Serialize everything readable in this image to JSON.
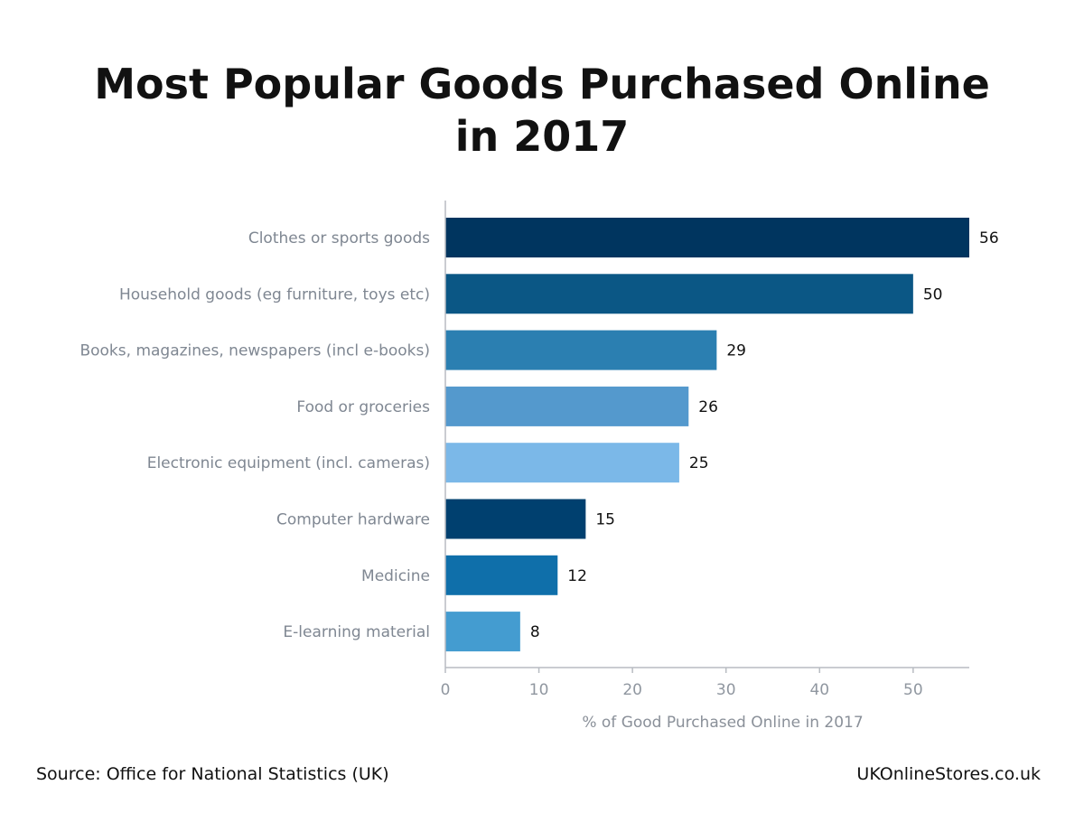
{
  "chart_data": {
    "type": "bar",
    "orientation": "horizontal",
    "title_lines": [
      "Most Popular Goods Purchased Online",
      "in 2017"
    ],
    "xlabel": "% of Good Purchased Online in 2017",
    "ylabel": "",
    "xlim": [
      0,
      56
    ],
    "xticks": [
      0,
      10,
      20,
      30,
      40,
      50
    ],
    "grid": false,
    "categories": [
      "Clothes or sports goods",
      "Household goods (eg furniture, toys etc)",
      "Books, magazines, newspapers (incl e-books)",
      "Food or groceries",
      "Electronic equipment (incl. cameras)",
      "Computer hardware",
      "Medicine",
      "E-learning material"
    ],
    "values": [
      56,
      50,
      29,
      26,
      25,
      15,
      12,
      8
    ],
    "colors": [
      "#00355f",
      "#0b5785",
      "#2b7fb1",
      "#5499cd",
      "#7bb8e8",
      "#00406f",
      "#0f6faa",
      "#449cd0"
    ]
  },
  "footer": {
    "source": "Source: Office for National Statistics (UK)",
    "site": "UKOnlineStores.co.uk"
  }
}
